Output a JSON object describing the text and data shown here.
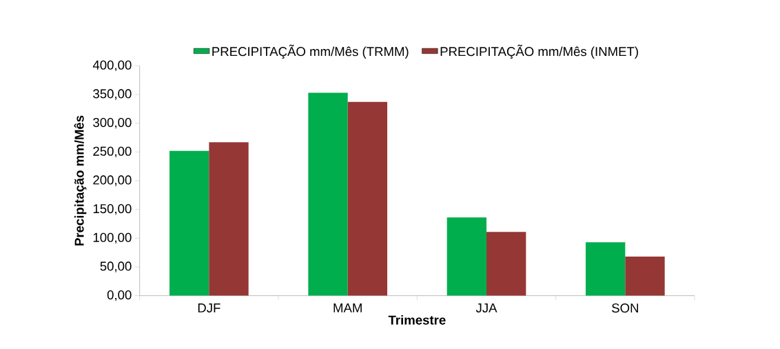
{
  "chart_data": {
    "type": "bar",
    "ylabel": "Precipitação mm/Mês",
    "xlabel": "Trimestre",
    "categories": [
      "DJF",
      "MAM",
      "JJA",
      "SON"
    ],
    "series": [
      {
        "name": "PRECIPITAÇÃO mm/Mês (TRMM)",
        "color": "#00ae4e",
        "values": [
          252,
          353,
          136,
          93
        ]
      },
      {
        "name": "PRECIPITAÇÃO mm/Mês (INMET)",
        "color": "#953735",
        "values": [
          267,
          337,
          111,
          68
        ]
      }
    ],
    "ylim": [
      0,
      400
    ],
    "yticks": [
      {
        "value": 0,
        "label": "0,00"
      },
      {
        "value": 50,
        "label": "50,00"
      },
      {
        "value": 100,
        "label": "100,00"
      },
      {
        "value": 150,
        "label": "150,00"
      },
      {
        "value": 200,
        "label": "200,00"
      },
      {
        "value": 250,
        "label": "250,00"
      },
      {
        "value": 300,
        "label": "300,00"
      },
      {
        "value": 350,
        "label": "350,00"
      },
      {
        "value": 400,
        "label": "400,00"
      }
    ],
    "grid": false,
    "legend": "top"
  }
}
